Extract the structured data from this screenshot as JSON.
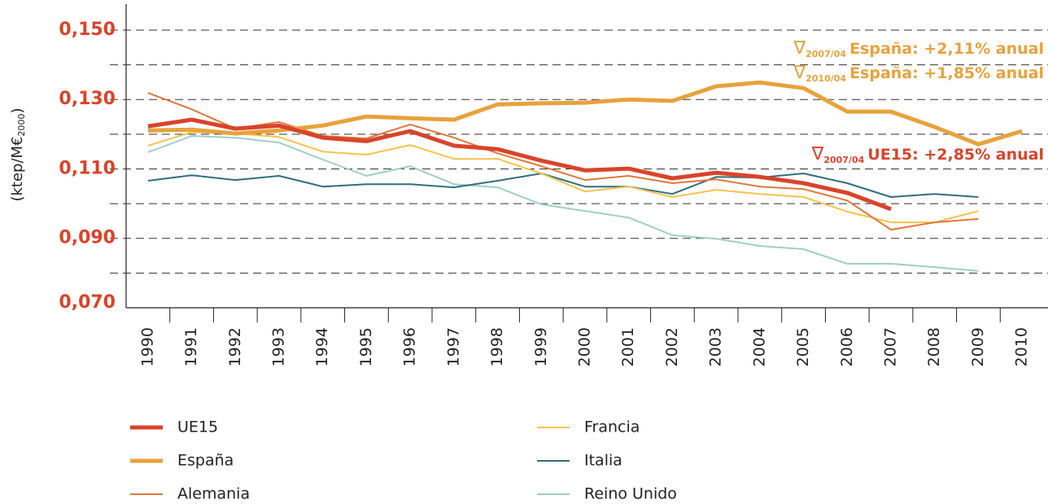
{
  "chart_data": {
    "type": "line",
    "y_label": {
      "main": "(ktep/M€",
      "sub": "2000",
      "end": ")"
    },
    "categories": [
      "1990",
      "1991",
      "1992",
      "1993",
      "1994",
      "1995",
      "1996",
      "1997",
      "1998",
      "1999",
      "2000",
      "2001",
      "2002",
      "2003",
      "2004",
      "2005",
      "2006",
      "2007",
      "2008",
      "2009",
      "2010"
    ],
    "ylim": [
      0.07,
      0.1575
    ],
    "yticks": [
      {
        "value": 0.07,
        "label": "0,070"
      },
      {
        "value": 0.09,
        "label": "0,090"
      },
      {
        "value": 0.11,
        "label": "0,110"
      },
      {
        "value": 0.13,
        "label": "0,130"
      },
      {
        "value": 0.15,
        "label": "0,150"
      }
    ],
    "minor_yticks": [
      0.08,
      0.1,
      0.12,
      0.14
    ],
    "grid": true,
    "tick_color": "#d9442b",
    "series": [
      {
        "name": "UE15",
        "color": "#d9442b",
        "width": 5,
        "values": [
          0.1223,
          0.1242,
          0.1216,
          0.1225,
          0.119,
          0.118,
          0.1209,
          0.1167,
          0.1157,
          0.1124,
          0.1096,
          0.1101,
          0.1073,
          0.1089,
          0.1077,
          0.1059,
          0.1031,
          0.0984,
          null,
          null,
          null
        ]
      },
      {
        "name": "España",
        "color": "#e8a23c",
        "width": 5,
        "values": [
          0.1211,
          0.1213,
          0.1202,
          0.1211,
          0.1225,
          0.1251,
          0.1246,
          0.1242,
          0.1286,
          0.1289,
          0.1291,
          0.13,
          0.1296,
          0.1338,
          0.1349,
          0.1333,
          0.1265,
          0.1265,
          0.1221,
          0.1171,
          0.1209
        ]
      },
      {
        "name": "Alemania",
        "color": "#e07838",
        "width": 2,
        "values": [
          0.1319,
          0.1272,
          0.1216,
          0.1235,
          0.1195,
          0.1188,
          0.1228,
          0.119,
          0.1145,
          0.1108,
          0.1068,
          0.108,
          0.1059,
          0.107,
          0.1049,
          0.1042,
          0.1009,
          0.0925,
          0.0946,
          0.0956,
          null
        ]
      },
      {
        "name": "Francia",
        "color": "#f7c34e",
        "width": 2,
        "values": [
          0.1167,
          0.1206,
          0.1202,
          0.1192,
          0.115,
          0.1141,
          0.1169,
          0.1129,
          0.1129,
          0.1087,
          0.1035,
          0.1049,
          0.1019,
          0.104,
          0.1028,
          0.1019,
          0.0977,
          0.0946,
          0.0946,
          0.0979,
          null
        ]
      },
      {
        "name": "Italia",
        "color": "#2f6f7e",
        "width": 2,
        "values": [
          0.1066,
          0.1082,
          0.1068,
          0.108,
          0.1049,
          0.1056,
          0.1056,
          0.1047,
          0.1066,
          0.1087,
          0.1049,
          0.1049,
          0.1028,
          0.1077,
          0.1075,
          0.1087,
          0.1059,
          0.1019,
          0.1028,
          0.1019,
          null
        ]
      },
      {
        "name": "Reino Unido",
        "color": "#9fcfc6",
        "width": 2,
        "values": [
          0.1148,
          0.1195,
          0.119,
          0.1176,
          0.1127,
          0.108,
          0.1108,
          0.1056,
          0.1047,
          0.0998,
          0.0979,
          0.096,
          0.0909,
          0.0899,
          0.0878,
          0.0869,
          0.0827,
          0.0827,
          0.0817,
          0.0806,
          null
        ]
      }
    ],
    "annotations": [
      {
        "symbol": "∇",
        "sub": "2007/04",
        "text": "España: +2,11% anual",
        "color": "#e8a23c"
      },
      {
        "symbol": "∇",
        "sub": "2010/04",
        "text": "España: +1,85% anual",
        "color": "#e8a23c"
      },
      {
        "symbol": "∇",
        "sub": "2007/04",
        "text": "UE15: +2,85% anual",
        "color": "#d9442b"
      }
    ]
  }
}
